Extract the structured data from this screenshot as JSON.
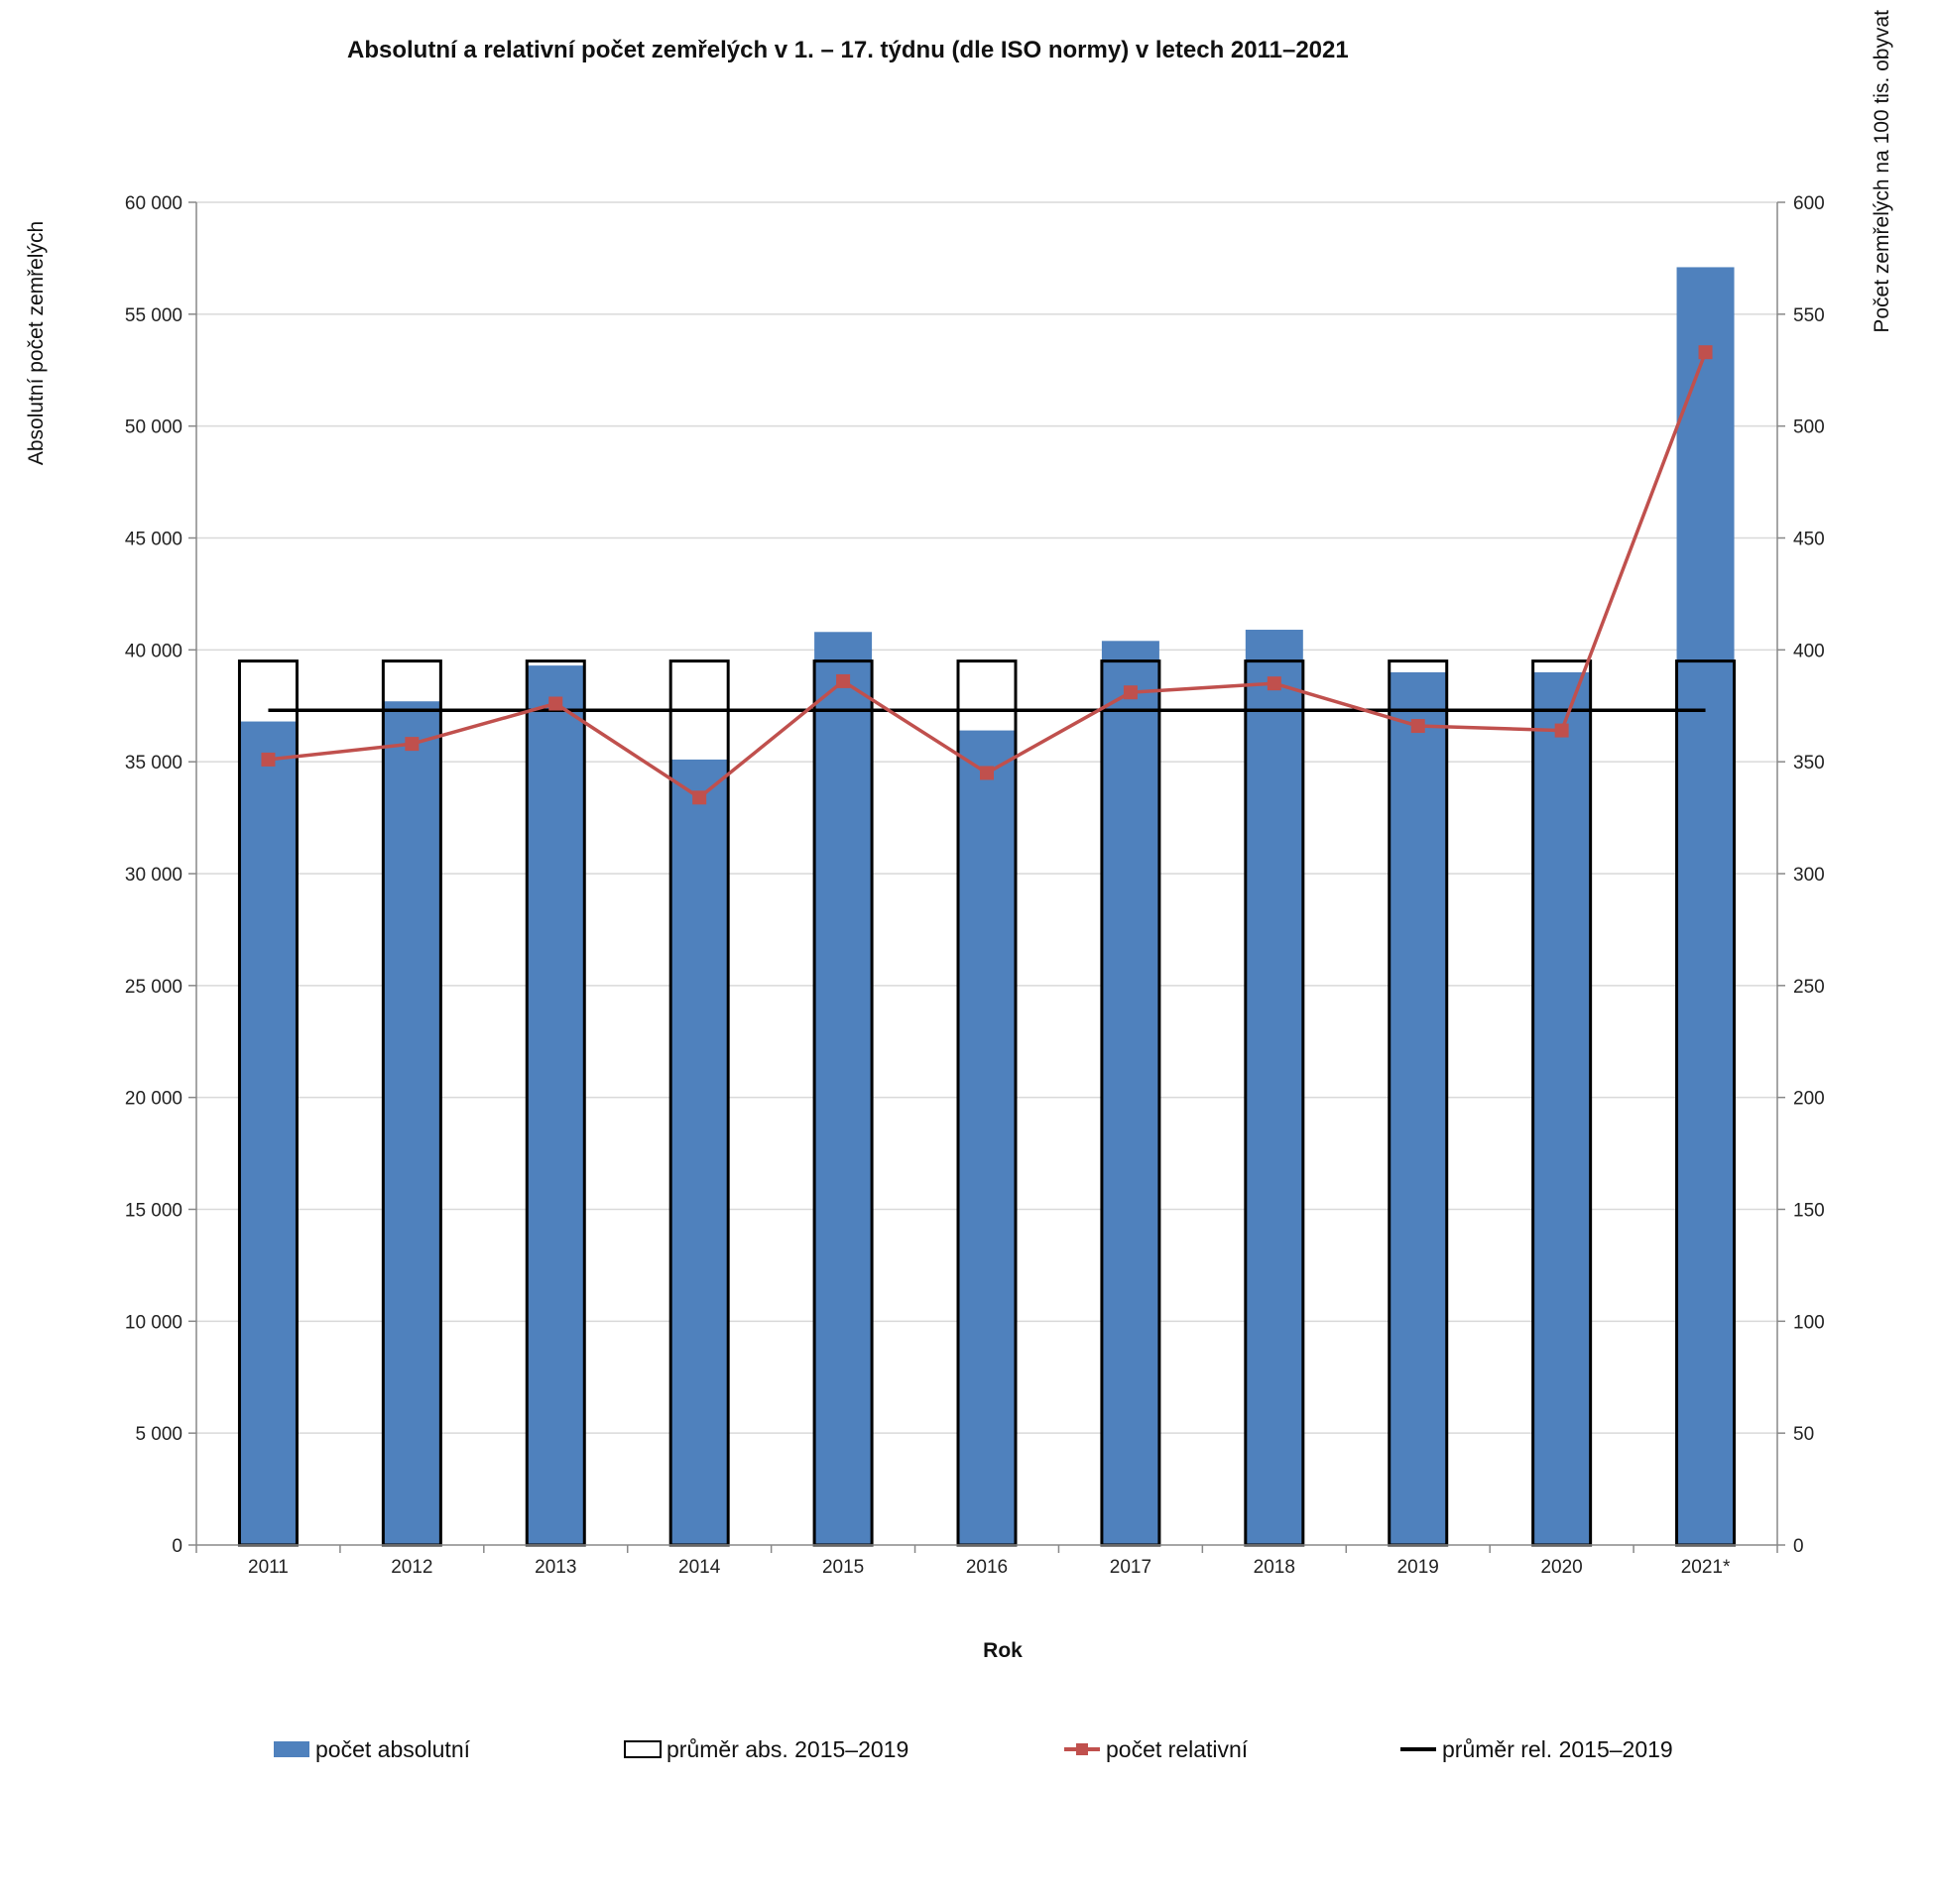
{
  "chart_data": {
    "type": "bar",
    "title": "Absolutní a relativní počet zemřelých v 1. – 17. týdnu (dle ISO normy) v letech 2011–2021",
    "xlabel": "Rok",
    "ylabel": "Absolutní počet zemřelých",
    "y2label": "Počet zemřelých na 100 tis. obyvat",
    "categories": [
      "2011",
      "2012",
      "2013",
      "2014",
      "2015",
      "2016",
      "2017",
      "2018",
      "2019",
      "2020",
      "2021*"
    ],
    "ylim": [
      0,
      60000
    ],
    "y2lim": [
      0,
      600
    ],
    "yticks": [
      "0",
      "5 000",
      "10 000",
      "15 000",
      "20 000",
      "25 000",
      "30 000",
      "35 000",
      "40 000",
      "45 000",
      "50 000",
      "55 000",
      "60 000"
    ],
    "y2ticks": [
      "0",
      "50",
      "100",
      "150",
      "200",
      "250",
      "300",
      "350",
      "400",
      "450",
      "500",
      "550",
      "600"
    ],
    "grid": true,
    "legend_position": "bottom",
    "series": [
      {
        "name": "počet absolutní",
        "kind": "bar",
        "axis": "left",
        "color": "#4f81bd",
        "values": [
          36800,
          37700,
          39300,
          35100,
          40800,
          36400,
          40400,
          40900,
          39000,
          39000,
          57100
        ]
      },
      {
        "name": "průměr abs. 2015–2019",
        "kind": "bar-outline",
        "axis": "left",
        "color": "#000000",
        "values": [
          39500,
          39500,
          39500,
          39500,
          39500,
          39500,
          39500,
          39500,
          39500,
          39500,
          39500
        ]
      },
      {
        "name": "počet relativní",
        "kind": "line-marker",
        "axis": "right",
        "color": "#c0504d",
        "values": [
          351,
          358,
          376,
          334,
          386,
          345,
          381,
          385,
          366,
          364,
          533
        ]
      },
      {
        "name": "průměr rel. 2015–2019",
        "kind": "line",
        "axis": "right",
        "color": "#000000",
        "values": [
          373,
          373,
          373,
          373,
          373,
          373,
          373,
          373,
          373,
          373,
          373
        ]
      }
    ]
  }
}
